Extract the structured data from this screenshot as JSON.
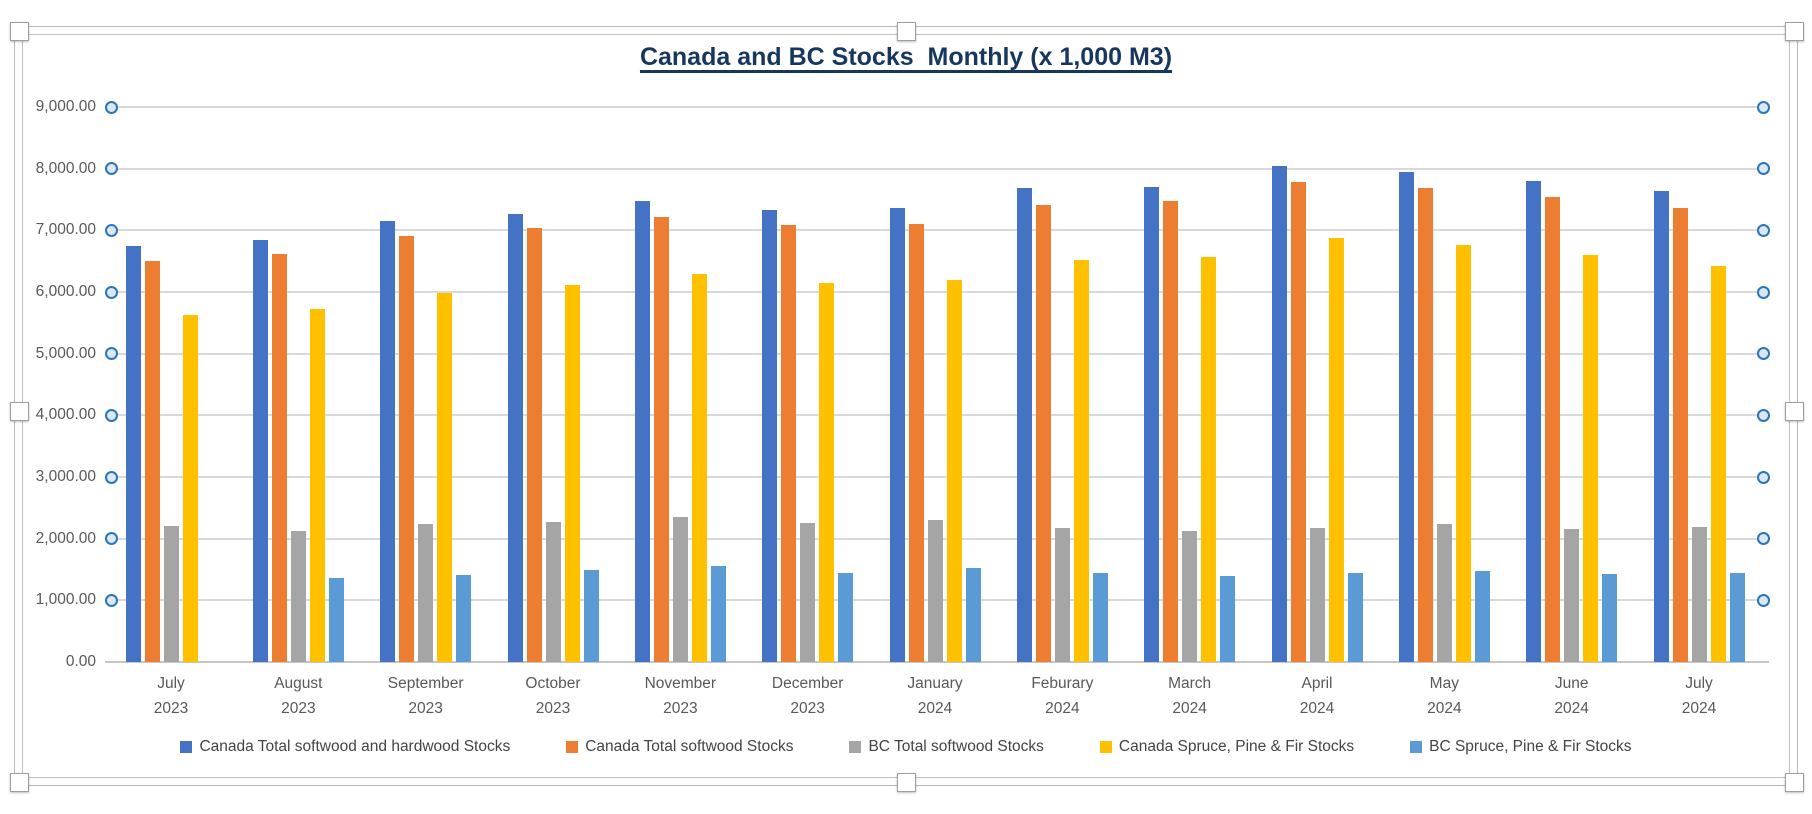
{
  "chart_data": {
    "type": "bar",
    "title": "Canada and BC Stocks  Monthly (x 1,000 M3)",
    "title_color": "#17375e",
    "categories": [
      "July 2023",
      "August 2023",
      "September 2023",
      "October 2023",
      "November 2023",
      "December 2023",
      "January 2024",
      "Feburary 2024",
      "March 2024",
      "April 2024",
      "May 2024",
      "June 2024",
      "July 2024"
    ],
    "series": [
      {
        "name": "Canada Total softwood and hardwood Stocks",
        "color": "#4472c4",
        "values": [
          6740,
          6850,
          7150,
          7270,
          7480,
          7330,
          7360,
          7680,
          7710,
          8040,
          7950,
          7800,
          7630
        ]
      },
      {
        "name": "Canada Total softwood Stocks",
        "color": "#ed7d31",
        "values": [
          6500,
          6610,
          6910,
          7030,
          7220,
          7080,
          7100,
          7410,
          7470,
          7780,
          7690,
          7540,
          7360
        ]
      },
      {
        "name": "BC Total softwood Stocks",
        "color": "#a5a5a5",
        "values": [
          2200,
          2130,
          2240,
          2270,
          2350,
          2250,
          2300,
          2170,
          2130,
          2180,
          2230,
          2160,
          2190
        ]
      },
      {
        "name": "Canada Spruce, Pine & Fir Stocks",
        "color": "#ffc000",
        "values": [
          5620,
          5730,
          5990,
          6120,
          6300,
          6140,
          6190,
          6520,
          6570,
          6880,
          6760,
          6600,
          6420
        ]
      },
      {
        "name": "BC Spruce, Pine & Fir Stocks",
        "color": "#5b9bd5",
        "values": [
          null,
          1370,
          1410,
          1490,
          1550,
          1440,
          1520,
          1440,
          1400,
          1450,
          1470,
          1420,
          1450
        ]
      }
    ],
    "xlabel": "",
    "ylabel": "",
    "ylim": [
      0,
      9000
    ],
    "y_tick_step": 1000,
    "y_tick_labels": [
      "0.00",
      "1,000.00",
      "2,000.00",
      "3,000.00",
      "4,000.00",
      "5,000.00",
      "6,000.00",
      "7,000.00",
      "8,000.00",
      "9,000.00"
    ],
    "grid": true,
    "legend_position": "bottom",
    "selection_chrome": {
      "chart_selected": true,
      "gridlines_selected": true,
      "handle_color": "#ffffff",
      "gridline_handle_ring": "#2e75b6",
      "gridline_handle_fill": "#d9e7f6"
    }
  }
}
